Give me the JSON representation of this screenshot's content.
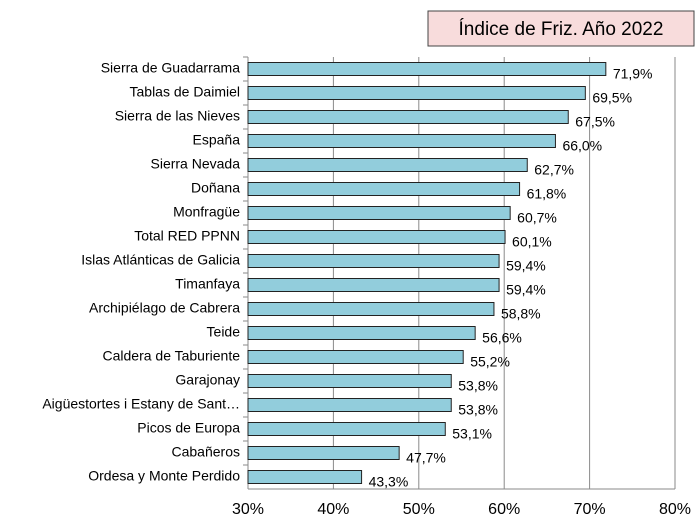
{
  "chart_data": {
    "type": "barh",
    "title": "Índice de Friz. Año 2022",
    "categories": [
      "Sierra de Guadarrama",
      "Tablas de Daimiel",
      "Sierra de las Nieves",
      "España",
      "Sierra Nevada",
      "Doñana",
      "Monfragüe",
      "Total RED PPNN",
      "Islas Atlánticas de Galicia",
      "Timanfaya",
      "Archipiélago de Cabrera",
      "Teide",
      "Caldera de Taburiente",
      "Garajonay",
      "Aigüestortes i Estany de Sant…",
      "Picos de Europa",
      "Cabañeros",
      "Ordesa y Monte Perdido"
    ],
    "values": [
      71.9,
      69.5,
      67.5,
      66.0,
      62.7,
      61.8,
      60.7,
      60.1,
      59.4,
      59.4,
      58.8,
      56.6,
      55.2,
      53.8,
      53.8,
      53.1,
      47.7,
      43.3
    ],
    "value_labels": [
      "71,9%",
      "69,5%",
      "67,5%",
      "66,0%",
      "62,7%",
      "61,8%",
      "60,7%",
      "60,1%",
      "59,4%",
      "59,4%",
      "58,8%",
      "56,6%",
      "55,2%",
      "53,8%",
      "53,8%",
      "53,1%",
      "47,7%",
      "43,3%"
    ],
    "color": "#92cddc",
    "xlim": [
      30,
      80
    ],
    "xticks": [
      {
        "value": 30,
        "label": "30%"
      },
      {
        "value": 40,
        "label": "40%"
      },
      {
        "value": 50,
        "label": "50%"
      },
      {
        "value": 60,
        "label": "60%"
      },
      {
        "value": 70,
        "label": "70%"
      },
      {
        "value": 80,
        "label": "80%"
      }
    ],
    "grid": true
  }
}
